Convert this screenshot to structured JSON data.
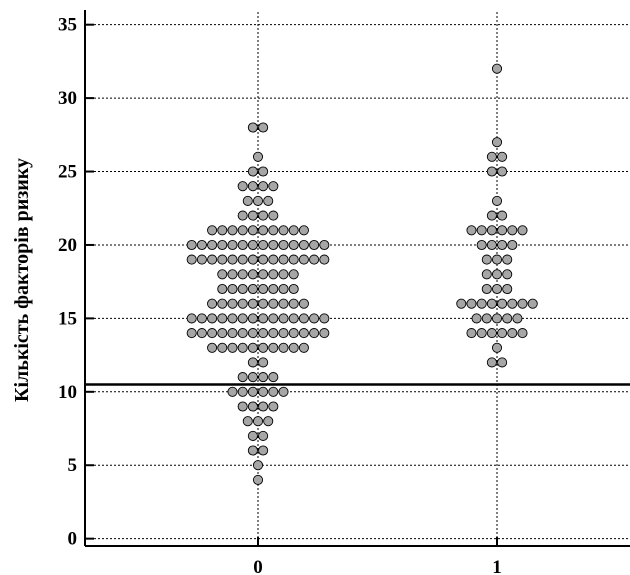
{
  "chart_data": {
    "type": "scatter",
    "style": "dot-plot",
    "title": "",
    "ylabel": "Кількість факторів ризику",
    "xlabel": "",
    "categories": [
      "0",
      "1"
    ],
    "y_ticks": [
      0,
      5,
      10,
      15,
      20,
      25,
      30,
      35
    ],
    "ylim": [
      -0.5,
      36
    ],
    "grid": true,
    "reference_line": {
      "y": 10.5
    },
    "dot_color": "#a6a6a6",
    "series": [
      {
        "category": "0",
        "counts": [
          {
            "y": 4,
            "n": 1
          },
          {
            "y": 5,
            "n": 1
          },
          {
            "y": 6,
            "n": 2
          },
          {
            "y": 7,
            "n": 2
          },
          {
            "y": 8,
            "n": 3
          },
          {
            "y": 9,
            "n": 4
          },
          {
            "y": 10,
            "n": 6
          },
          {
            "y": 11,
            "n": 4
          },
          {
            "y": 12,
            "n": 2
          },
          {
            "y": 13,
            "n": 10
          },
          {
            "y": 14,
            "n": 14
          },
          {
            "y": 15,
            "n": 14
          },
          {
            "y": 16,
            "n": 10
          },
          {
            "y": 17,
            "n": 8
          },
          {
            "y": 18,
            "n": 8
          },
          {
            "y": 19,
            "n": 14
          },
          {
            "y": 20,
            "n": 14
          },
          {
            "y": 21,
            "n": 10
          },
          {
            "y": 22,
            "n": 4
          },
          {
            "y": 23,
            "n": 3
          },
          {
            "y": 24,
            "n": 4
          },
          {
            "y": 25,
            "n": 2
          },
          {
            "y": 26,
            "n": 1
          },
          {
            "y": 28,
            "n": 2
          }
        ]
      },
      {
        "category": "1",
        "counts": [
          {
            "y": 12,
            "n": 2
          },
          {
            "y": 13,
            "n": 1
          },
          {
            "y": 14,
            "n": 6
          },
          {
            "y": 15,
            "n": 5
          },
          {
            "y": 16,
            "n": 8
          },
          {
            "y": 17,
            "n": 3
          },
          {
            "y": 18,
            "n": 3
          },
          {
            "y": 19,
            "n": 3
          },
          {
            "y": 20,
            "n": 4
          },
          {
            "y": 21,
            "n": 6
          },
          {
            "y": 22,
            "n": 2
          },
          {
            "y": 23,
            "n": 1
          },
          {
            "y": 25,
            "n": 2
          },
          {
            "y": 26,
            "n": 2
          },
          {
            "y": 27,
            "n": 1
          },
          {
            "y": 32,
            "n": 1
          }
        ]
      }
    ]
  }
}
